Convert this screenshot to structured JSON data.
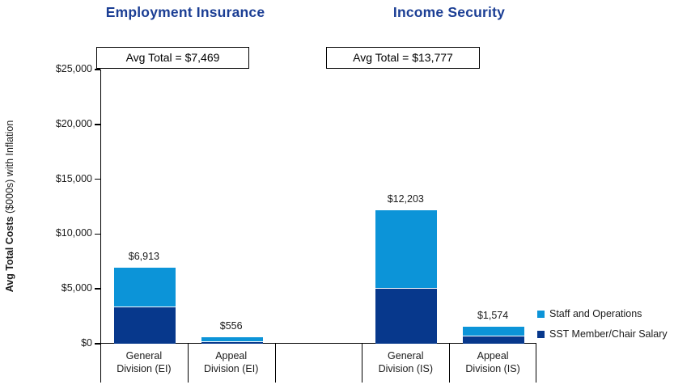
{
  "page": {
    "background": "#ffffff"
  },
  "colors": {
    "title_navy": "#1B3E94",
    "staff_blue": "#0C94D8",
    "sst_navy": "#07388C",
    "axis_black": "#000000",
    "text": "#1A1A1A"
  },
  "chart_data": {
    "type": "bar",
    "stacked": true,
    "groups": [
      {
        "title": "Employment Insurance",
        "avg_label": "Avg Total = $7,469",
        "avg_value": 7469
      },
      {
        "title": "Income Security",
        "avg_label": "Avg Total = $13,777",
        "avg_value": 13777
      }
    ],
    "categories": [
      "General Division (EI)",
      "Appeal Division (EI)",
      "General Division (IS)",
      "Appeal Division (IS)"
    ],
    "category_label_lines": [
      [
        "General",
        "Division (EI)"
      ],
      [
        "Appeal",
        "Division (EI)"
      ],
      [
        "General",
        "Division (IS)"
      ],
      [
        "Appeal",
        "Division (IS)"
      ]
    ],
    "series": [
      {
        "name": "SST Member/Chair Salary",
        "color": "#07388C",
        "values": [
          3300,
          180,
          5000,
          650
        ]
      },
      {
        "name": "Staff and Operations",
        "color": "#0C94D8",
        "values": [
          3613,
          376,
          7203,
          924
        ]
      }
    ],
    "totals": [
      6913,
      556,
      12203,
      1574
    ],
    "total_labels": [
      "$6,913",
      "$556",
      "$12,203",
      "$1,574"
    ],
    "y_axis": {
      "title_bold": "Avg Total Costs",
      "title_rest": " ($000s) with Inflation",
      "ylim": [
        0,
        25000
      ],
      "ticks": [
        {
          "value": 0,
          "label": "$0"
        },
        {
          "value": 5000,
          "label": "$5,000"
        },
        {
          "value": 10000,
          "label": "$10,000"
        },
        {
          "value": 15000,
          "label": "$15,000"
        },
        {
          "value": 20000,
          "label": "$20,000"
        },
        {
          "value": 25000,
          "label": "$25,000"
        }
      ]
    },
    "legend": [
      {
        "label": "Staff and Operations",
        "color": "#0C94D8"
      },
      {
        "label": "SST Member/Chair Salary",
        "color": "#07388C"
      }
    ],
    "legend_position": "right",
    "grid": false
  }
}
